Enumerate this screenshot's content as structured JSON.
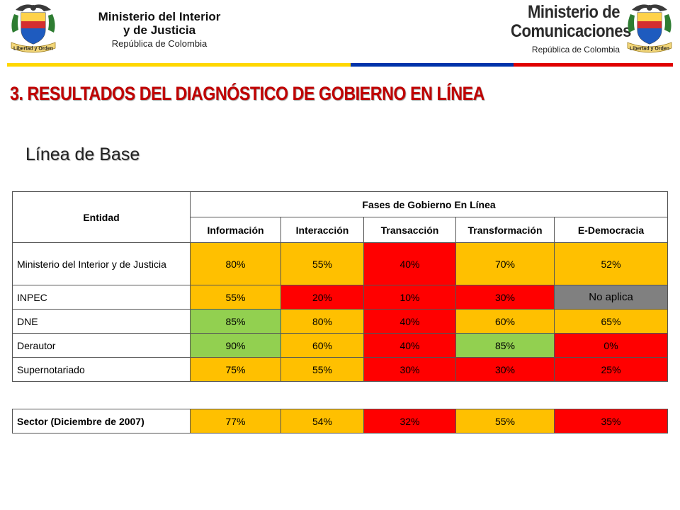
{
  "header": {
    "left_org_line1": "Ministerio del Interior",
    "left_org_line2": "y de Justicia",
    "left_org_line3": "República de Colombia",
    "left_seal_motto": "Libertad y Orden",
    "right_org_line1": "Ministerio de",
    "right_org_line2": "Comunicaciones",
    "right_org_line3": "República de Colombia",
    "right_seal_motto": "Libertad y Orden"
  },
  "colors": {
    "stripe_yellow": "#ffd700",
    "stripe_blue": "#0033aa",
    "stripe_red": "#e00000",
    "title": "#c00000",
    "cell_yellow": "#ffc000",
    "cell_red": "#ff0000",
    "cell_green": "#92d050",
    "cell_gray": "#808080"
  },
  "page": {
    "title": "3. RESULTADOS DEL DIAGNÓSTICO DE GOBIERNO EN LÍNEA",
    "subtitle": "Línea de Base"
  },
  "table": {
    "entity_header": "Entidad",
    "phases_header": "Fases de Gobierno En Línea",
    "columns": [
      "Información",
      "Interacción",
      "Transacción",
      "Transformación",
      "E-Democracia"
    ],
    "rows": [
      {
        "entity": "Ministerio del Interior y de Justicia",
        "values": [
          "80%",
          "55%",
          "40%",
          "70%",
          "52%"
        ],
        "colors": [
          "yellow",
          "yellow",
          "red",
          "yellow",
          "yellow"
        ]
      },
      {
        "entity": "INPEC",
        "values": [
          "55%",
          "20%",
          "10%",
          "30%",
          "No aplica"
        ],
        "colors": [
          "yellow",
          "red",
          "red",
          "red",
          "gray"
        ]
      },
      {
        "entity": "DNE",
        "values": [
          "85%",
          "80%",
          "40%",
          "60%",
          "65%"
        ],
        "colors": [
          "green",
          "yellow",
          "red",
          "yellow",
          "yellow"
        ]
      },
      {
        "entity": "Derautor",
        "values": [
          "90%",
          "60%",
          "40%",
          "85%",
          "0%"
        ],
        "colors": [
          "green",
          "yellow",
          "red",
          "green",
          "red"
        ]
      },
      {
        "entity": "Supernotariado",
        "values": [
          "75%",
          "55%",
          "30%",
          "30%",
          "25%"
        ],
        "colors": [
          "yellow",
          "yellow",
          "red",
          "red",
          "red"
        ]
      }
    ],
    "sector": {
      "entity": "Sector (Diciembre de 2007)",
      "values": [
        "77%",
        "54%",
        "32%",
        "55%",
        "35%"
      ],
      "colors": [
        "yellow",
        "yellow",
        "red",
        "yellow",
        "red"
      ]
    }
  }
}
